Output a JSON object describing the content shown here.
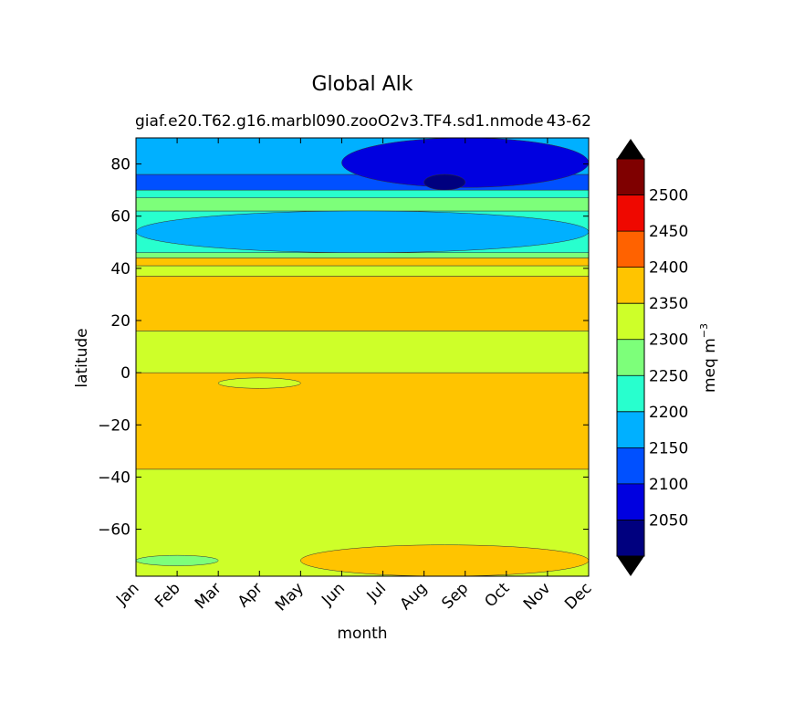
{
  "chart_data": {
    "type": "contourf",
    "title": "Global Alk",
    "subtitle_left": "giaf.e20.T62.g16.marbl090.zooO2v3.TF4.sd1.nmode",
    "subtitle_right": "43-62",
    "xlabel": "month",
    "ylabel": "latitude",
    "x_categories": [
      "Jan",
      "Feb",
      "Mar",
      "Apr",
      "May",
      "Jun",
      "Jul",
      "Aug",
      "Sep",
      "Oct",
      "Nov",
      "Dec"
    ],
    "xlim": [
      1,
      12
    ],
    "ylim": [
      -78,
      90
    ],
    "y_ticks": [
      80,
      60,
      40,
      20,
      0,
      -20,
      -40,
      -60
    ],
    "y_tick_labels": [
      "80",
      "60",
      "40",
      "20",
      "0",
      "−20",
      "−40",
      "−60"
    ],
    "colorbar": {
      "label_main": "meq m",
      "label_exp": "−3",
      "levels": [
        2000,
        2050,
        2100,
        2150,
        2200,
        2250,
        2300,
        2350,
        2400,
        2450,
        2500,
        2550
      ],
      "tick_values": [
        2050,
        2100,
        2150,
        2200,
        2250,
        2300,
        2350,
        2400,
        2450,
        2500
      ],
      "tick_labels": [
        "2050",
        "2100",
        "2150",
        "2200",
        "2250",
        "2300",
        "2350",
        "2400",
        "2450",
        "2500"
      ],
      "colors": [
        "#00007f",
        "#0000e0",
        "#0050ff",
        "#00b0ff",
        "#28ffce",
        "#7dff7a",
        "#ceff29",
        "#ffc400",
        "#ff6200",
        "#ef0800",
        "#7f0000"
      ],
      "extend": "both"
    },
    "bands": [
      {
        "lat_min": -78,
        "lat_max": -37,
        "value": 2325,
        "label": "2300-2350"
      },
      {
        "lat_min": -37,
        "lat_max": 0,
        "value": 2375,
        "label": "2350-2400"
      },
      {
        "lat_min": 0,
        "lat_max": 16,
        "value": 2325,
        "label": "2300-2350"
      },
      {
        "lat_min": 16,
        "lat_max": 37,
        "value": 2375,
        "label": "2350-2400"
      },
      {
        "lat_min": 37,
        "lat_max": 41,
        "value": 2325,
        "label": "2300-2350"
      },
      {
        "lat_min": 41,
        "lat_max": 44,
        "value": 2375,
        "label": "2350-2400"
      },
      {
        "lat_min": 44,
        "lat_max": 46,
        "value": 2275,
        "label": "2250-2300"
      },
      {
        "lat_min": 46,
        "lat_max": 62,
        "value": 2225,
        "label": "2200-2250"
      },
      {
        "lat_min": 62,
        "lat_max": 67,
        "value": 2275,
        "label": "2250-2300"
      },
      {
        "lat_min": 67,
        "lat_max": 70,
        "value": 2225,
        "label": "2200-2250"
      },
      {
        "lat_min": 70,
        "lat_max": 76,
        "value": 2125,
        "label": "2100-2150"
      },
      {
        "lat_min": 76,
        "lat_max": 90,
        "value": 2175,
        "label": "2150-2200"
      }
    ],
    "features": [
      {
        "month_from": 1,
        "month_to": 12,
        "lat_from": 46,
        "lat_to": 62,
        "value": 2175,
        "note": "low-alkalinity patch summer-autumn 50-60N"
      },
      {
        "month_from": 6,
        "month_to": 12,
        "lat_from": 71,
        "lat_to": 90,
        "value": 2075,
        "note": "arctic minimum Jul-Oct"
      },
      {
        "month_from": 8,
        "month_to": 9,
        "lat_from": 70,
        "lat_to": 76,
        "value": 2025,
        "note": "deepest minimum Aug"
      },
      {
        "month_from": 5,
        "month_to": 12,
        "lat_from": -78,
        "lat_to": -66,
        "value": 2375,
        "note": "austral summer high"
      },
      {
        "month_from": 3,
        "month_to": 5,
        "lat_from": -6,
        "lat_to": -2,
        "value": 2325,
        "note": "equatorial low patch"
      },
      {
        "month_from": 1,
        "month_to": 3,
        "lat_from": -74,
        "lat_to": -70,
        "value": 2275,
        "note": "antarctic coastal low"
      }
    ]
  }
}
